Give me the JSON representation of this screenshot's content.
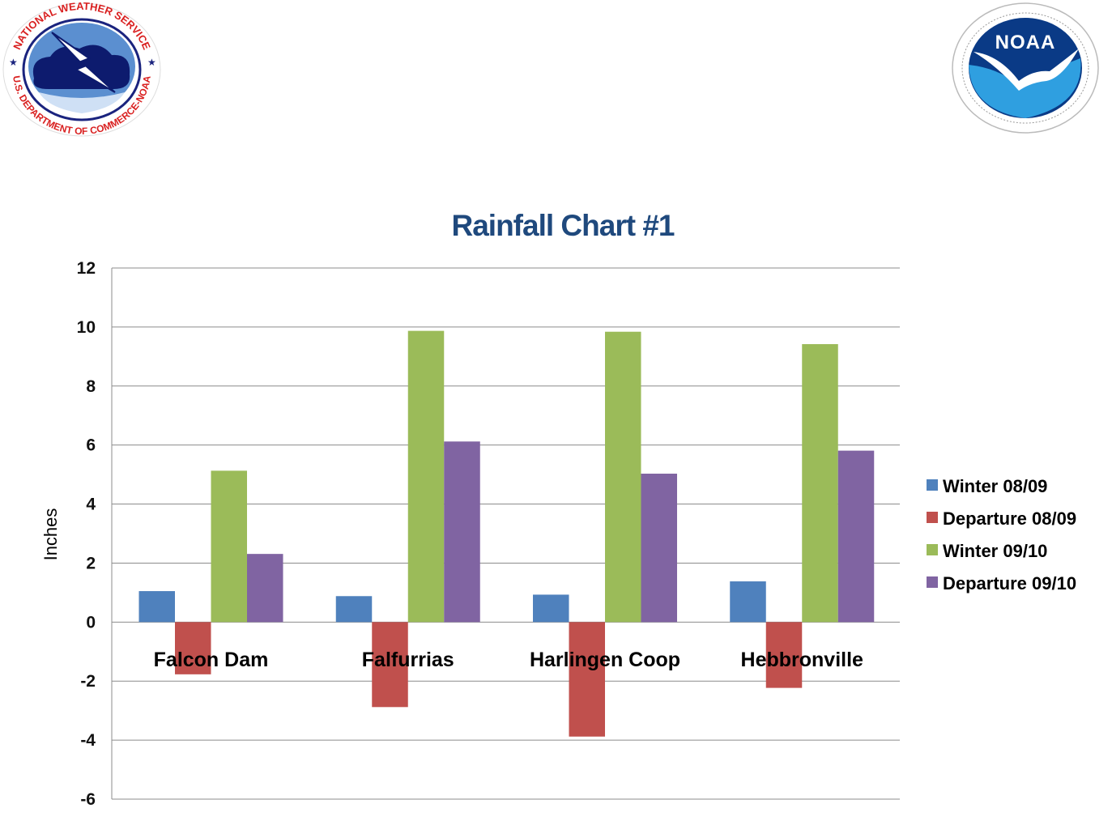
{
  "logos": {
    "nws": {
      "top_text": "NATIONAL WEATHER SERVICE",
      "bottom_text": "U.S. DEPARTMENT OF COMMERCE-NOAA"
    },
    "noaa": {
      "center_text": "NOAA"
    }
  },
  "colors": {
    "title": "#1f497d",
    "grid": "#8c8c8c"
  },
  "chart_data": {
    "type": "bar",
    "title": "Rainfall Chart #1",
    "xlabel": "",
    "ylabel": "Inches",
    "ylim": [
      -6,
      12
    ],
    "yticks": [
      12,
      10,
      8,
      6,
      4,
      2,
      0,
      -2,
      -4,
      -6
    ],
    "grid": true,
    "legend_position": "right",
    "categories": [
      "Falcon Dam",
      "Falfurrias",
      "Harlingen Coop",
      "Hebbronville"
    ],
    "series": [
      {
        "name": "Winter 08/09",
        "color": "#4f81bd",
        "values": [
          1.05,
          0.88,
          0.93,
          1.38
        ]
      },
      {
        "name": "Departure 08/09",
        "color": "#c0504d",
        "values": [
          -1.77,
          -2.88,
          -3.88,
          -2.23
        ]
      },
      {
        "name": "Winter 09/10",
        "color": "#9bbb59",
        "values": [
          5.13,
          9.87,
          9.84,
          9.42
        ]
      },
      {
        "name": "Departure 09/10",
        "color": "#8064a2",
        "values": [
          2.31,
          6.12,
          5.03,
          5.81
        ]
      }
    ]
  }
}
